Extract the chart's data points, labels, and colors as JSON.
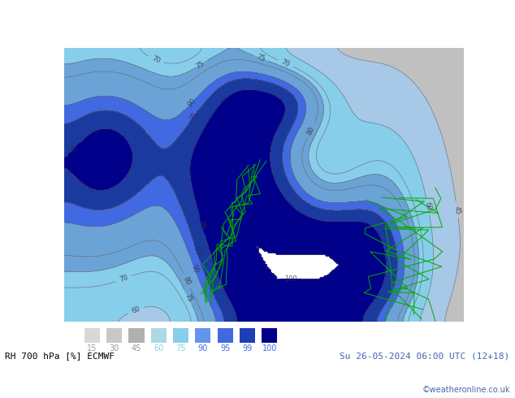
{
  "title_left": "RH 700 hPa [%] ECMWF",
  "title_right": "Su 26-05-2024 06:00 UTC (12+18)",
  "copyright": "©weatheronline.co.uk",
  "legend_values": [
    15,
    30,
    45,
    60,
    75,
    90,
    95,
    99,
    100
  ],
  "legend_colors": [
    "#d3d3d3",
    "#c0c0c0",
    "#a8a8a8",
    "#add8e6",
    "#87ceeb",
    "#6495ed",
    "#4169e1",
    "#00008b",
    "#000080"
  ],
  "bg_color": "#ffffff",
  "fig_width": 6.34,
  "fig_height": 4.9,
  "dpi": 100
}
